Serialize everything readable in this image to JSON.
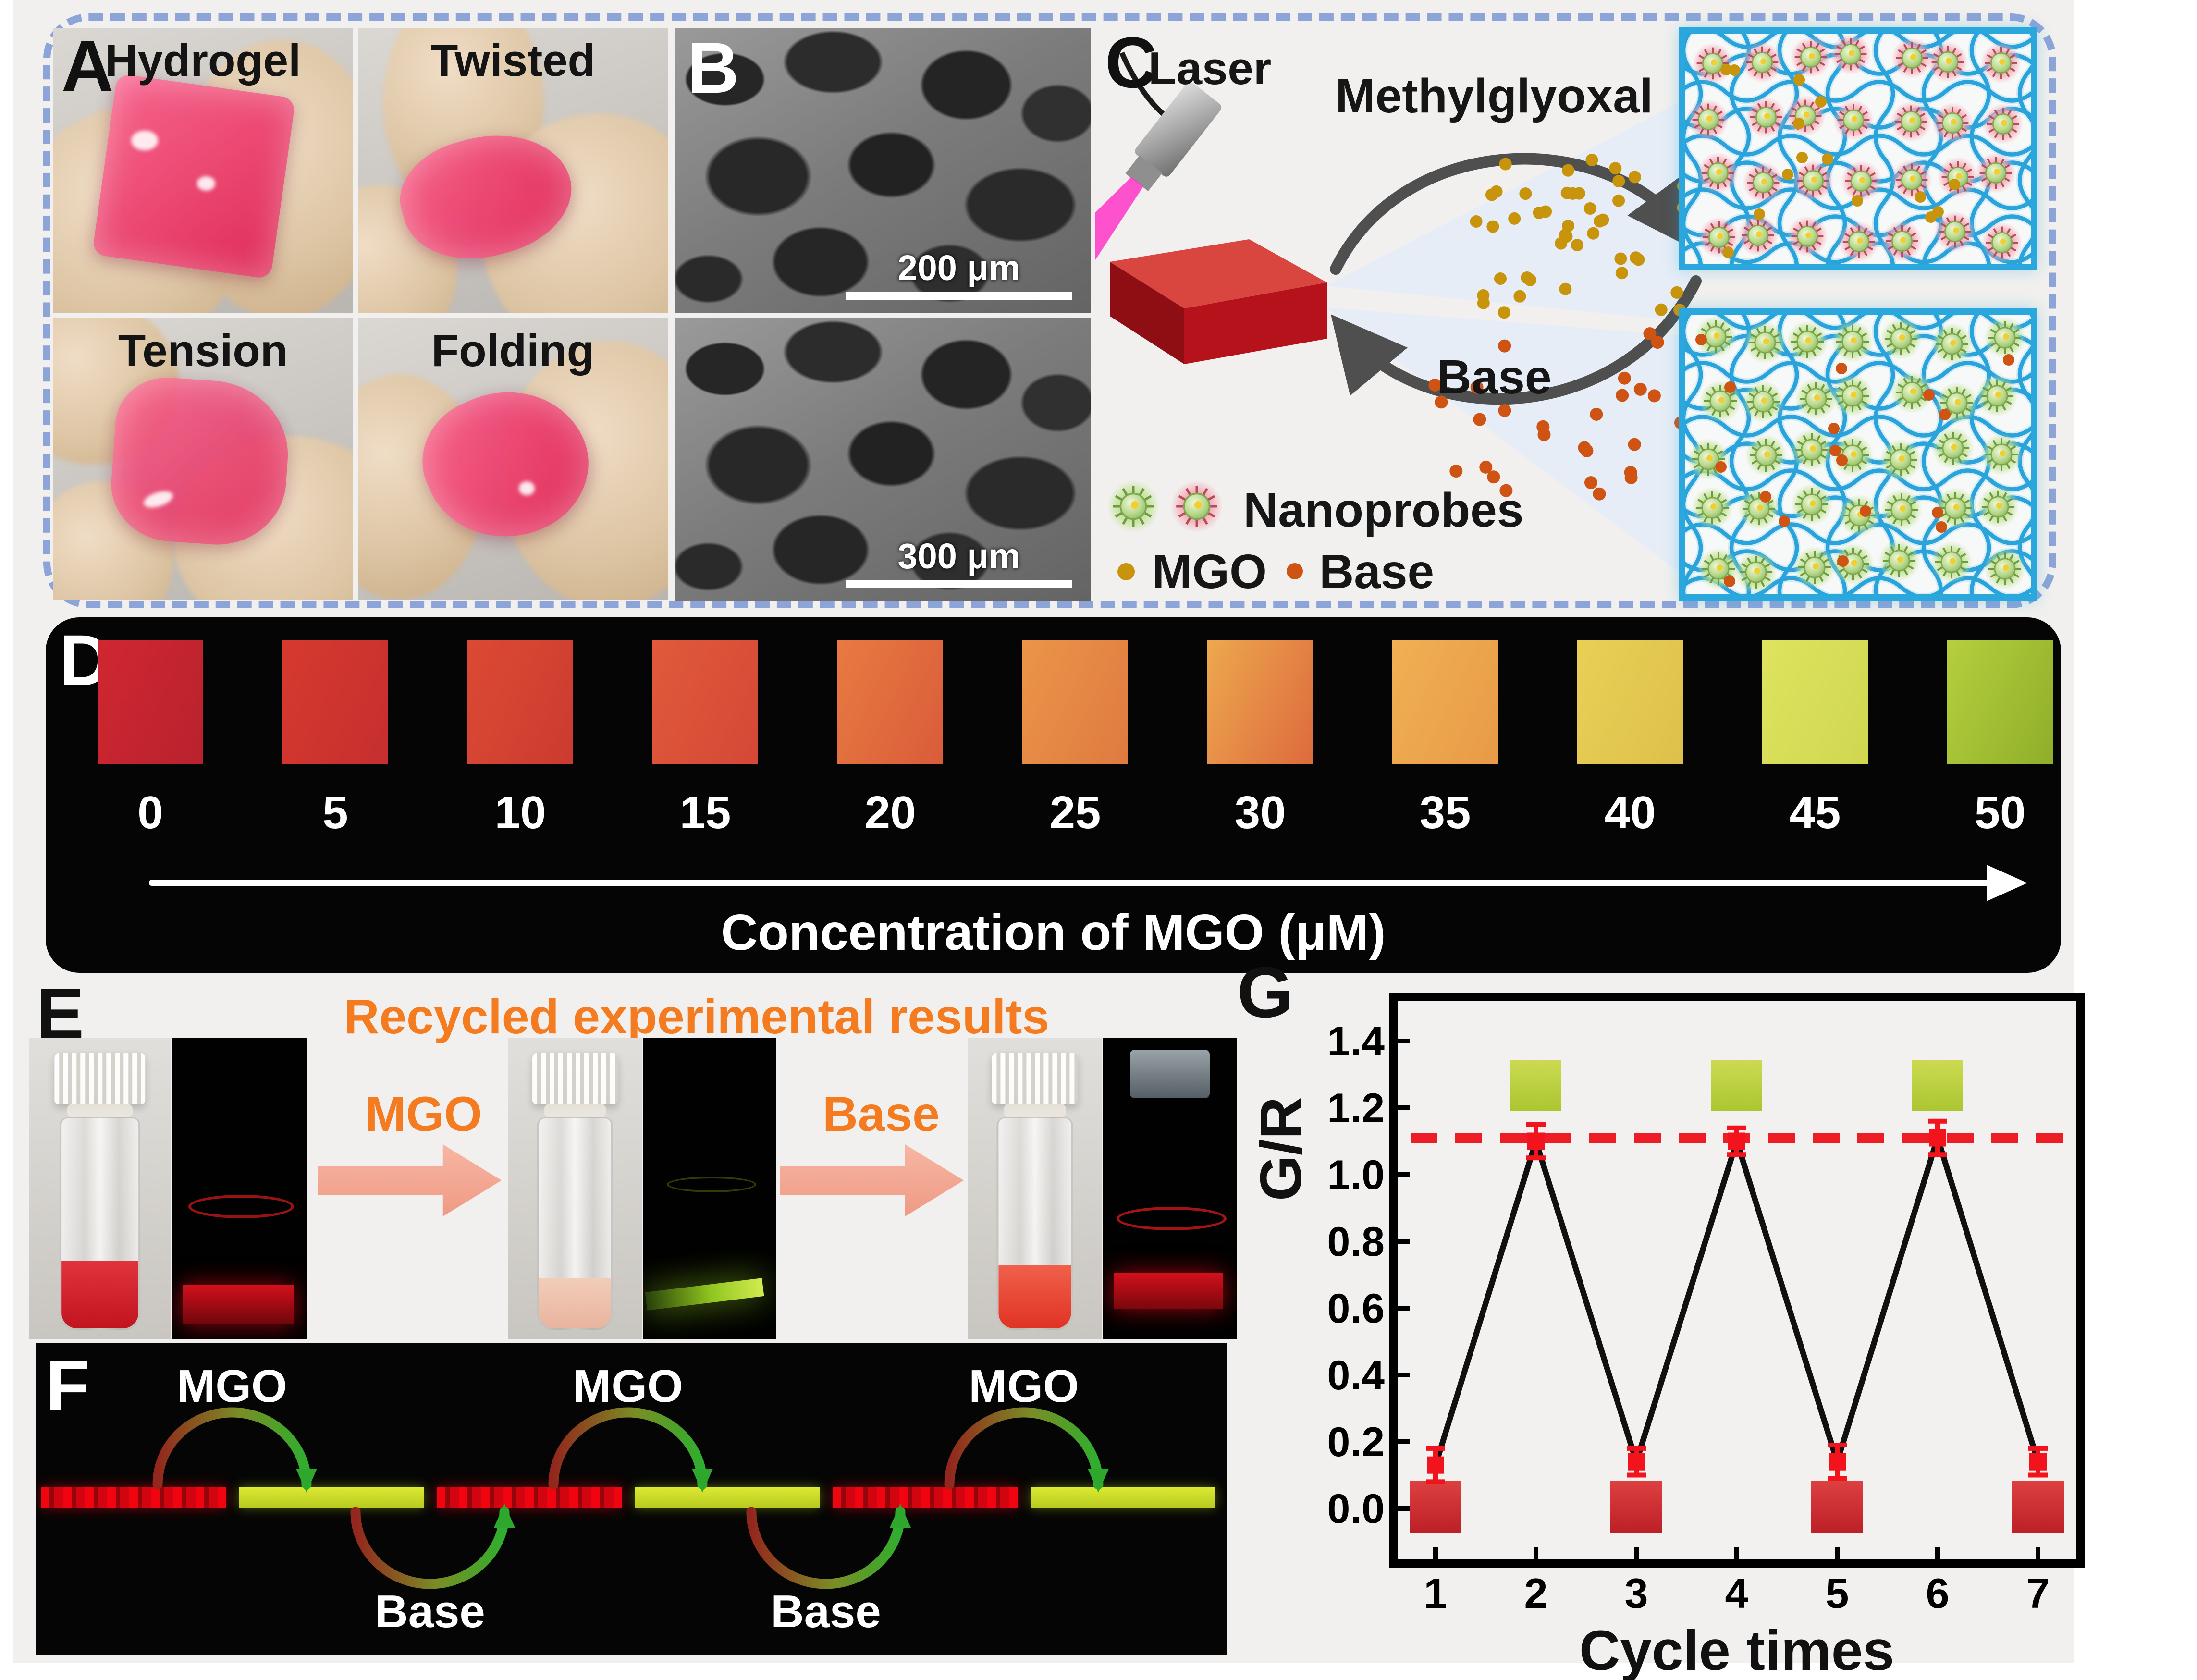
{
  "figure": {
    "background": "#f1f0ee",
    "page_background": "#ffffff",
    "dashed_border_color": "#8da4d8",
    "black_panel_color": "#050505",
    "accent_orange": "#f47b20"
  },
  "panels": {
    "A": {
      "label": "A",
      "photos": [
        {
          "caption": "Hydrogel"
        },
        {
          "caption": "Twisted"
        },
        {
          "caption": "Tension"
        },
        {
          "caption": "Folding"
        }
      ]
    },
    "B": {
      "label": "B",
      "scalebars": [
        "200 μm",
        "300 μm"
      ]
    },
    "C": {
      "label": "C",
      "laser_label": "Laser",
      "forward_arrow_label": "Methylglyoxal",
      "reverse_arrow_label": "Base",
      "legend": {
        "nanoprobes_label": "Nanoprobes",
        "mgo_label": "MGO",
        "base_label": "Base"
      },
      "colors": {
        "mgo_dot": "#c8940b",
        "base_dot": "#cf5313",
        "network_line": "#2aa2da",
        "network_box_border": "#2aa7dd"
      }
    },
    "D": {
      "label": "D",
      "axis_label": "Concentration of MGO (μM)",
      "concentrations": [
        "0",
        "5",
        "10",
        "15",
        "20",
        "25",
        "30",
        "35",
        "40",
        "45",
        "50"
      ],
      "swatch_gradients": [
        [
          "#d02730",
          "#b8222e"
        ],
        [
          "#d63a2e",
          "#c52f2f"
        ],
        [
          "#dc4a34",
          "#cc3a30"
        ],
        [
          "#e05a3b",
          "#d44836"
        ],
        [
          "#e87a42",
          "#d95c39"
        ],
        [
          "#eb9549",
          "#df7a40"
        ],
        [
          "#eda84e",
          "#dd6a3d"
        ],
        [
          "#f0b153",
          "#e89a47"
        ],
        [
          "#e8d055",
          "#ddc04b"
        ],
        [
          "#dfe35e",
          "#cfd751"
        ],
        [
          "#b5cf3d",
          "#8fae2a"
        ]
      ]
    },
    "E": {
      "label": "E",
      "title": "Recycled experimental results",
      "step1_label": "MGO",
      "step2_label": "Base"
    },
    "F": {
      "label": "F",
      "top_labels": [
        "MGO",
        "MGO",
        "MGO"
      ],
      "bottom_labels": [
        "Base",
        "Base"
      ]
    },
    "G": {
      "label": "G"
    }
  },
  "chart_data": {
    "type": "line",
    "x": [
      1,
      2,
      3,
      4,
      5,
      6,
      7
    ],
    "series": [
      {
        "name": "G/R",
        "values": [
          0.13,
          1.1,
          0.14,
          1.1,
          0.14,
          1.11,
          0.14
        ],
        "errors": [
          0.05,
          0.05,
          0.04,
          0.04,
          0.05,
          0.05,
          0.04
        ]
      }
    ],
    "reference_line_y": 1.11,
    "xlabel": "Cycle times",
    "ylabel": "G/R",
    "ylim": [
      -0.12,
      1.4
    ],
    "yticks": [
      0.0,
      0.2,
      0.4,
      0.6,
      0.8,
      1.0,
      1.2,
      1.4
    ],
    "xticks": [
      1,
      2,
      3,
      4,
      5,
      6,
      7
    ],
    "grid": false,
    "legend_position": "none",
    "inset_green_at_x": [
      2,
      4,
      6
    ],
    "inset_red_at_x": [
      1,
      3,
      5,
      7
    ],
    "line_color": "#101010",
    "marker_color": "#f2131c",
    "reference_color": "#ee1c25"
  },
  "icons": {
    "nanoprobe_green": "spiky-sphere-green-glow",
    "nanoprobe_red": "spiky-sphere-red-glow",
    "mgo_dot": "small-olive-circle",
    "base_dot": "small-orange-circle",
    "laser": "gray-laser-pen",
    "step_arrow": "salmon-block-arrow",
    "concentration_arrow": "white-right-arrow"
  }
}
